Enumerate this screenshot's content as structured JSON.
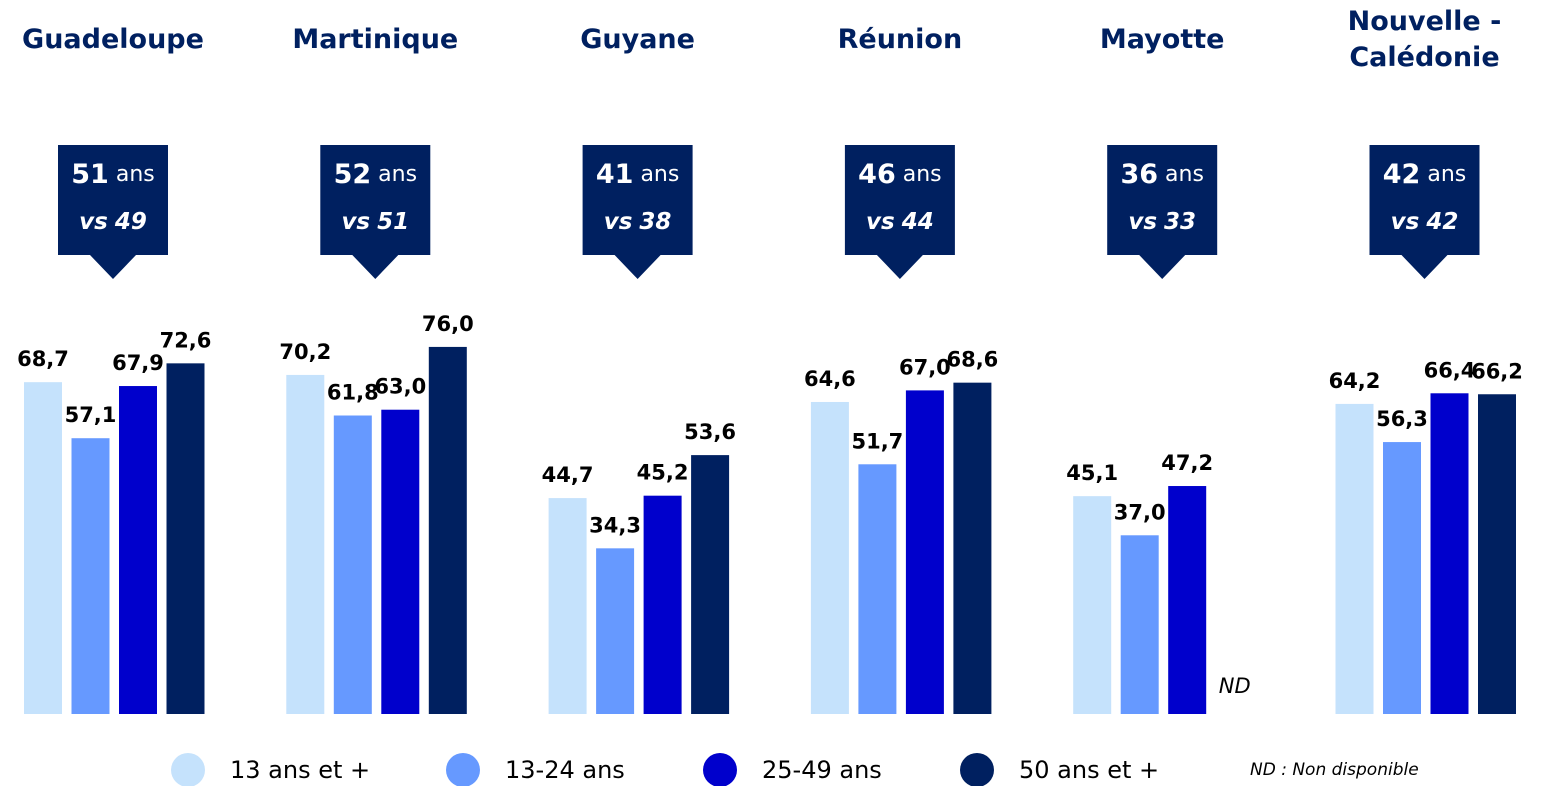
{
  "chart_data": {
    "type": "bar",
    "categories": [
      "Guadeloupe",
      "Martinique",
      "Guyane",
      "Réunion",
      "Mayotte",
      "Nouvelle -\nCalédonie"
    ],
    "callouts": {
      "ages": [
        51,
        52,
        41,
        46,
        36,
        42
      ],
      "unit": "ans",
      "vs_prefix": "vs",
      "vs_ages": [
        49,
        51,
        38,
        44,
        33,
        42
      ]
    },
    "series": [
      {
        "name": "13 ans et +",
        "color": "#c5e2fc",
        "values": [
          68.7,
          70.2,
          44.7,
          64.6,
          45.1,
          64.2
        ],
        "value_labels": [
          "68,7",
          "70,2",
          "44,7",
          "64,6",
          "45,1",
          "64,2"
        ]
      },
      {
        "name": "13-24 ans",
        "color": "#6699ff",
        "values": [
          57.1,
          61.8,
          34.3,
          51.7,
          37.0,
          56.3
        ],
        "value_labels": [
          "57,1",
          "61,8",
          "34,3",
          "51,7",
          "37,0",
          "56,3"
        ]
      },
      {
        "name": "25-49 ans",
        "color": "#0000cc",
        "values": [
          67.9,
          63.0,
          45.2,
          67.0,
          47.2,
          66.4
        ],
        "value_labels": [
          "67,9",
          "63,0",
          "45,2",
          "67,0",
          "47,2",
          "66,4"
        ]
      },
      {
        "name": "50 ans et +",
        "color": "#002060",
        "values": [
          72.6,
          76.0,
          53.6,
          68.6,
          null,
          66.2
        ],
        "value_labels": [
          "72,6",
          "76,0",
          "53,6",
          "68,6",
          null,
          "66,2"
        ]
      }
    ],
    "na_label": "ND",
    "footnote": "ND : Non disponible"
  }
}
